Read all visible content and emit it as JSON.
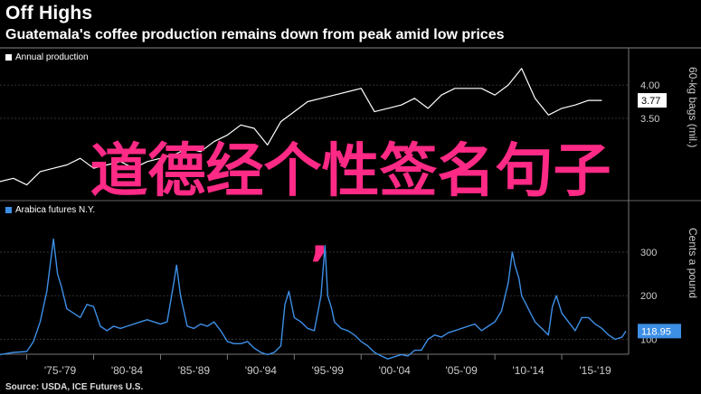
{
  "header": {
    "title": "Off Highs",
    "subtitle": "Guatemala's coffee production remains down from peak amid low prices"
  },
  "source": "Source: USDA, ICE Futures U.S.",
  "overlay_text": "道德经个性签名句子",
  "overlay_comma": ",",
  "colors": {
    "production": "#ffffff",
    "futures": "#3d8fe6",
    "overlay": "#ff2a86",
    "grid": "#555555"
  },
  "chart_data": [
    {
      "type": "line",
      "legend": "Annual production",
      "ylabel": "60-kg bags (mil.)",
      "yticks": [
        4.0,
        3.5
      ],
      "ylim": [
        2.4,
        4.3
      ],
      "last_value_label": "3.77",
      "series": [
        {
          "name": "Annual production",
          "x": [
            1973,
            1974,
            1975,
            1976,
            1977,
            1978,
            1979,
            1980,
            1981,
            1982,
            1983,
            1984,
            1985,
            1986,
            1987,
            1988,
            1989,
            1990,
            1991,
            1992,
            1993,
            1994,
            1995,
            1996,
            1997,
            1998,
            1999,
            2000,
            2001,
            2002,
            2003,
            2004,
            2005,
            2006,
            2007,
            2008,
            2009,
            2010,
            2011,
            2012,
            2013,
            2014,
            2015,
            2016,
            2017,
            2018
          ],
          "values": [
            2.55,
            2.6,
            2.5,
            2.7,
            2.75,
            2.8,
            2.9,
            2.75,
            2.8,
            2.85,
            2.75,
            2.85,
            2.9,
            2.95,
            3.05,
            3.0,
            3.15,
            3.25,
            3.4,
            3.35,
            3.1,
            3.45,
            3.6,
            3.75,
            3.8,
            3.85,
            3.9,
            3.95,
            3.6,
            3.65,
            3.7,
            3.8,
            3.65,
            3.85,
            3.95,
            3.95,
            3.95,
            3.85,
            4.0,
            4.25,
            3.8,
            3.55,
            3.65,
            3.7,
            3.77,
            3.77
          ]
        }
      ]
    },
    {
      "type": "line",
      "legend": "Arabica futures N.Y.",
      "ylabel": "Cents a pound",
      "yticks": [
        300,
        200,
        100
      ],
      "ylim": [
        70,
        360
      ],
      "last_value_label": "118.95",
      "xtick_labels": [
        "'75-'79",
        "'80-'84",
        "'85-'89",
        "'90-'94",
        "'95-'99",
        "'00-'04",
        "'05-'09",
        "'10-'14",
        "'15-'19"
      ],
      "series": [
        {
          "name": "Arabica futures N.Y.",
          "x": [
            1973.0,
            1974.0,
            1975.0,
            1975.5,
            1976.0,
            1976.5,
            1977.0,
            1977.3,
            1977.6,
            1978.0,
            1978.5,
            1979.0,
            1979.5,
            1980.0,
            1980.5,
            1981.0,
            1981.5,
            1982.0,
            1982.5,
            1983.0,
            1983.5,
            1984.0,
            1984.5,
            1985.0,
            1985.5,
            1986.0,
            1986.2,
            1986.5,
            1987.0,
            1987.5,
            1988.0,
            1988.5,
            1989.0,
            1989.5,
            1990.0,
            1990.5,
            1991.0,
            1991.5,
            1992.0,
            1992.5,
            1993.0,
            1993.5,
            1994.0,
            1994.3,
            1994.6,
            1995.0,
            1995.5,
            1996.0,
            1996.5,
            1997.0,
            1997.3,
            1997.5,
            1997.8,
            1998.0,
            1998.5,
            1999.0,
            1999.5,
            2000.0,
            2000.5,
            2001.0,
            2001.5,
            2002.0,
            2002.5,
            2003.0,
            2003.5,
            2004.0,
            2004.5,
            2005.0,
            2005.5,
            2006.0,
            2006.5,
            2007.0,
            2007.5,
            2008.0,
            2008.5,
            2009.0,
            2009.5,
            2010.0,
            2010.5,
            2011.0,
            2011.3,
            2011.5,
            2011.8,
            2012.0,
            2012.5,
            2013.0,
            2013.5,
            2014.0,
            2014.3,
            2014.6,
            2015.0,
            2015.5,
            2016.0,
            2016.5,
            2017.0,
            2017.5,
            2018.0,
            2018.5,
            2019.0,
            2019.5,
            2019.8
          ],
          "values": [
            65,
            70,
            72,
            95,
            140,
            210,
            330,
            250,
            220,
            170,
            160,
            150,
            180,
            175,
            130,
            120,
            130,
            125,
            130,
            135,
            140,
            145,
            140,
            135,
            140,
            230,
            270,
            200,
            130,
            125,
            135,
            130,
            140,
            120,
            95,
            90,
            90,
            95,
            80,
            70,
            65,
            70,
            85,
            180,
            210,
            150,
            140,
            125,
            120,
            200,
            315,
            200,
            170,
            140,
            125,
            120,
            110,
            95,
            85,
            70,
            62,
            55,
            60,
            65,
            62,
            75,
            75,
            100,
            110,
            105,
            115,
            120,
            125,
            130,
            135,
            120,
            130,
            140,
            165,
            230,
            300,
            270,
            240,
            200,
            170,
            140,
            125,
            110,
            175,
            200,
            160,
            140,
            120,
            150,
            150,
            135,
            125,
            110,
            100,
            105,
            118.95
          ]
        }
      ]
    }
  ]
}
